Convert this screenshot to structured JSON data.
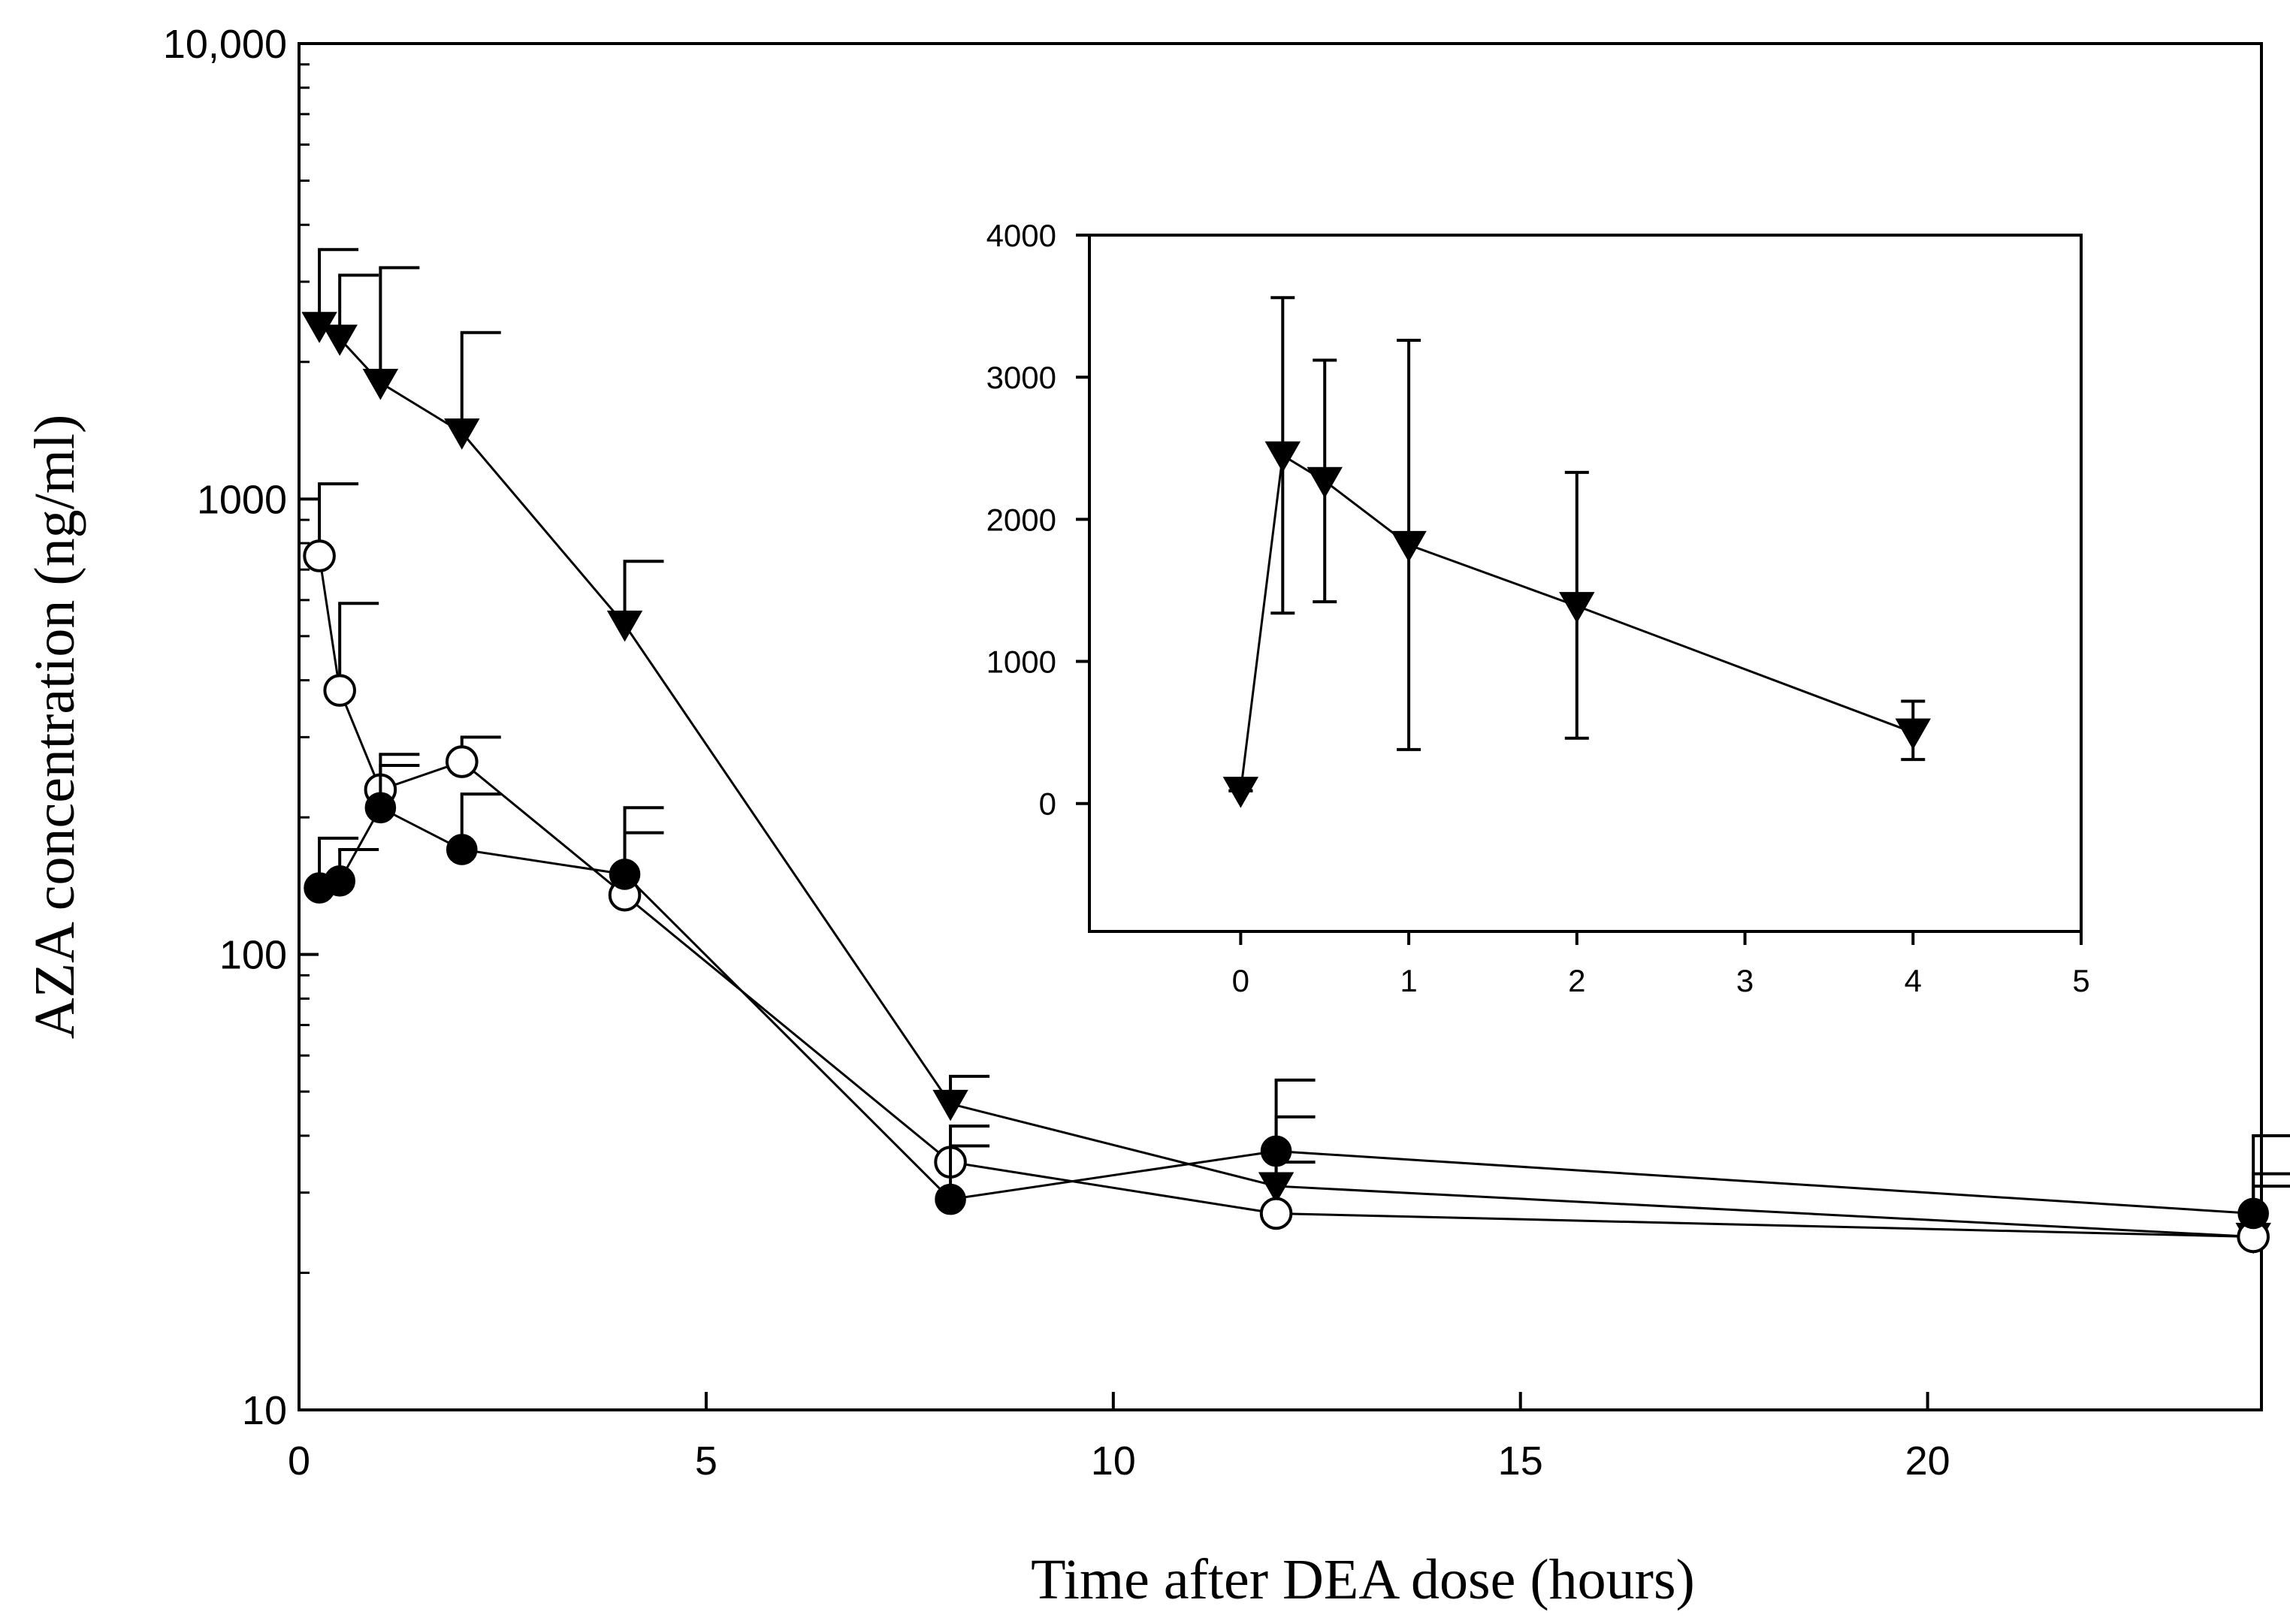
{
  "chart_data": [
    {
      "id": "main",
      "type": "line",
      "xlabel": "Time after DEA dose (hours)",
      "ylabel": "AZA concentration (ng/ml)",
      "yscale": "log",
      "xlim": [
        0,
        24.1
      ],
      "ylim": [
        10,
        10000
      ],
      "xticks": [
        0,
        5,
        10,
        15,
        20
      ],
      "xtick_labels": [
        "0",
        "5",
        "10",
        "15",
        "20"
      ],
      "yticks": [
        10,
        100,
        1000,
        10000
      ],
      "ytick_labels": [
        "10",
        "100",
        "1000",
        "10,000"
      ],
      "series": [
        {
          "name": "filled-triangle",
          "marker": "triangle-down-filled",
          "x": [
            0.25,
            0.5,
            1,
            2,
            4,
            8,
            12,
            24
          ],
          "y": [
            2400,
            2250,
            1800,
            1400,
            530,
            47,
            31,
            24
          ],
          "err_upper": [
            3530,
            3100,
            3220,
            2320,
            730,
            54,
            35,
            33
          ]
        },
        {
          "name": "open-circle",
          "marker": "circle-open",
          "x": [
            0.25,
            0.5,
            1,
            2,
            4,
            8,
            12,
            24
          ],
          "y": [
            750,
            380,
            230,
            265,
            135,
            35,
            27,
            24
          ],
          "err_upper": [
            1080,
            590,
            275,
            300,
            185,
            42,
            44,
            31
          ]
        },
        {
          "name": "filled-circle",
          "marker": "circle-filled",
          "x": [
            0.25,
            0.5,
            1,
            2,
            4,
            8,
            12,
            24
          ],
          "y": [
            140,
            145,
            210,
            170,
            150,
            29,
            37,
            27
          ],
          "err_upper": [
            180,
            170,
            260,
            225,
            210,
            38,
            53,
            40
          ]
        }
      ]
    },
    {
      "id": "inset",
      "type": "line",
      "xlim": [
        -0.9,
        5
      ],
      "ylim": [
        -900,
        4000
      ],
      "xticks": [
        0,
        1,
        2,
        3,
        4,
        5
      ],
      "xtick_labels": [
        "0",
        "1",
        "2",
        "3",
        "4",
        "5"
      ],
      "yticks": [
        0,
        1000,
        2000,
        3000,
        4000
      ],
      "ytick_labels": [
        "0",
        "1000",
        "2000",
        "3000",
        "4000"
      ],
      "series": [
        {
          "name": "filled-triangle",
          "marker": "triangle-down-filled",
          "x": [
            0,
            0.25,
            0.5,
            1,
            2,
            4
          ],
          "y": [
            90,
            2450,
            2270,
            1820,
            1390,
            500
          ],
          "err_lower": [
            90,
            1340,
            1420,
            380,
            460,
            310
          ],
          "err_upper": [
            90,
            3560,
            3120,
            3260,
            2330,
            720
          ]
        }
      ]
    }
  ]
}
